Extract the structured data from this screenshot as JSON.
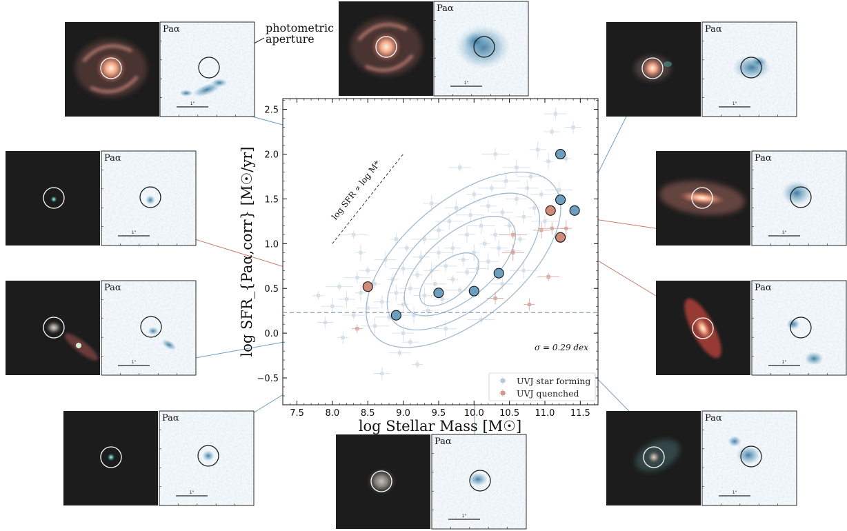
{
  "chart_data": {
    "type": "scatter",
    "xlabel": "log Stellar Mass [$M_\\odot$]",
    "xlabel_display": "log Stellar Mass [M☉]",
    "ylabel_display": "log SFR_{Paα,corr} [M☉/yr]",
    "xlim": [
      7.3,
      11.75
    ],
    "ylim": [
      -0.8,
      2.62
    ],
    "x_ticks": [
      7.5,
      8.0,
      8.5,
      9.0,
      9.5,
      10.0,
      10.5,
      11.0,
      11.5
    ],
    "x_tick_labels": [
      "7.5",
      "8.0",
      "8.5",
      "9.0",
      "9.5",
      "10.0",
      "10.5",
      "11.0",
      "11.5"
    ],
    "y_ticks": [
      -0.5,
      0.0,
      0.5,
      1.0,
      1.5,
      2.0,
      2.5
    ],
    "y_tick_labels": [
      "−0.5",
      "0.0",
      "0.5",
      "1.0",
      "1.5",
      "2.0",
      "2.5"
    ],
    "horizontal_line_y": 0.23,
    "slope_line": {
      "label": "log SFR ∝ log M*",
      "x": [
        8.0,
        9.0
      ],
      "y": [
        1.0,
        2.0
      ]
    },
    "sigma_annotation": "σ = 0.29 dex",
    "legend": {
      "position": "lower-right",
      "entries": [
        {
          "label": "UVJ star forming",
          "color": "#b8c8d8"
        },
        {
          "label": "UVJ quenched",
          "color": "#d29a8e"
        }
      ]
    },
    "series": [
      {
        "name": "UVJ star forming",
        "color": "#b8c8d8",
        "points": [
          [
            7.8,
            0.42
          ],
          [
            7.9,
            0.12
          ],
          [
            8.0,
            0.3
          ],
          [
            8.1,
            0.52
          ],
          [
            8.15,
            -0.05
          ],
          [
            8.2,
            0.38
          ],
          [
            8.3,
            0.2
          ],
          [
            8.35,
            0.62
          ],
          [
            8.4,
            0.45
          ],
          [
            8.5,
            0.7
          ],
          [
            8.5,
            0.28
          ],
          [
            8.6,
            0.08
          ],
          [
            8.6,
            0.55
          ],
          [
            8.7,
            0.35
          ],
          [
            8.75,
            0.82
          ],
          [
            8.8,
            0.18
          ],
          [
            8.85,
            0.6
          ],
          [
            8.9,
            0.45
          ],
          [
            8.95,
            -0.22
          ],
          [
            9.0,
            0.72
          ],
          [
            9.0,
            0.32
          ],
          [
            9.05,
            0.95
          ],
          [
            9.1,
            0.5
          ],
          [
            9.15,
            0.2
          ],
          [
            9.2,
            0.65
          ],
          [
            9.25,
            0.85
          ],
          [
            9.3,
            0.42
          ],
          [
            9.3,
            1.05
          ],
          [
            9.35,
            0.25
          ],
          [
            9.4,
            0.7
          ],
          [
            9.45,
            0.55
          ],
          [
            9.5,
            0.9
          ],
          [
            9.5,
            1.15
          ],
          [
            9.55,
            0.38
          ],
          [
            9.6,
            0.75
          ],
          [
            9.65,
            1.25
          ],
          [
            9.7,
            0.6
          ],
          [
            9.7,
            0.95
          ],
          [
            9.75,
            1.4
          ],
          [
            9.8,
            0.48
          ],
          [
            9.85,
            0.82
          ],
          [
            9.9,
            1.1
          ],
          [
            9.9,
            0.68
          ],
          [
            9.95,
            1.32
          ],
          [
            10.0,
            0.9
          ],
          [
            10.0,
            1.55
          ],
          [
            10.05,
            0.72
          ],
          [
            10.1,
            1.2
          ],
          [
            10.15,
            1.0
          ],
          [
            10.2,
            1.42
          ],
          [
            10.2,
            0.8
          ],
          [
            10.25,
            1.62
          ],
          [
            10.3,
            1.1
          ],
          [
            10.35,
            0.95
          ],
          [
            10.4,
            1.35
          ],
          [
            10.45,
            1.7
          ],
          [
            10.5,
            1.2
          ],
          [
            10.55,
            0.92
          ],
          [
            10.6,
            1.5
          ],
          [
            10.6,
            1.85
          ],
          [
            10.65,
            1.05
          ],
          [
            10.7,
            1.3
          ],
          [
            10.75,
            1.62
          ],
          [
            10.8,
            1.75
          ],
          [
            10.85,
            1.4
          ],
          [
            10.9,
            2.05
          ],
          [
            10.95,
            1.55
          ],
          [
            11.0,
            1.25
          ],
          [
            11.05,
            1.92
          ],
          [
            11.1,
            2.25
          ],
          [
            11.15,
            2.45
          ],
          [
            11.2,
            1.6
          ],
          [
            9.2,
            -0.35
          ],
          [
            8.7,
            -0.45
          ],
          [
            9.6,
            0.05
          ],
          [
            10.1,
            0.15
          ],
          [
            8.9,
            1.05
          ],
          [
            9.4,
            1.45
          ],
          [
            9.8,
            1.85
          ],
          [
            10.3,
            2.0
          ],
          [
            8.4,
            0.9
          ],
          [
            9.1,
            -0.1
          ],
          [
            10.4,
            0.55
          ],
          [
            10.7,
            0.7
          ],
          [
            11.3,
            1.95
          ],
          [
            11.4,
            2.3
          ],
          [
            9.0,
            0.0
          ],
          [
            8.3,
            1.1
          ]
        ]
      },
      {
        "name": "UVJ quenched",
        "color": "#d29a8e",
        "points": [
          [
            8.35,
            0.05
          ],
          [
            10.3,
            0.39
          ],
          [
            10.55,
            0.9
          ],
          [
            10.55,
            1.1
          ],
          [
            10.78,
            0.32
          ],
          [
            10.95,
            1.15
          ],
          [
            11.05,
            0.63
          ],
          [
            11.1,
            1.17
          ],
          [
            11.3,
            1.17
          ]
        ]
      },
      {
        "name": "highlighted",
        "points": [
          [
            8.5,
            0.52,
            "#d08a7a"
          ],
          [
            8.9,
            0.2,
            "#6c9ec0"
          ],
          [
            9.5,
            0.45,
            "#6c9ec0"
          ],
          [
            10.0,
            0.47,
            "#6c9ec0"
          ],
          [
            10.35,
            0.67,
            "#6c9ec0"
          ],
          [
            11.08,
            1.37,
            "#d08a7a"
          ],
          [
            11.22,
            1.07,
            "#d08a7a"
          ],
          [
            11.22,
            1.49,
            "#6c9ec0"
          ],
          [
            11.22,
            2.0,
            "#6c9ec0"
          ],
          [
            11.42,
            1.37,
            "#6c9ec0"
          ]
        ]
      }
    ],
    "contours": [
      {
        "cx": 9.65,
        "cy": 0.6,
        "rx": 0.5,
        "ry": 0.2,
        "angle": 40
      },
      {
        "cx": 9.8,
        "cy": 0.75,
        "rx": 0.95,
        "ry": 0.36,
        "angle": 40
      },
      {
        "cx": 9.85,
        "cy": 0.8,
        "rx": 1.3,
        "ry": 0.5,
        "angle": 40
      },
      {
        "cx": 9.85,
        "cy": 0.82,
        "rx": 1.65,
        "ry": 0.66,
        "angle": 40
      }
    ]
  },
  "panel_label": "Paα",
  "scale_bar_label": "1\"",
  "callout": [
    "photometric",
    "aperture"
  ],
  "colors": {
    "blue_marker": "#6c9ec0",
    "red_marker": "#d08a7a",
    "link_blue": "#6a9ec6",
    "link_red": "#c9796a",
    "contour": "#7fa3bd",
    "dashed": "#8aa0b8"
  }
}
